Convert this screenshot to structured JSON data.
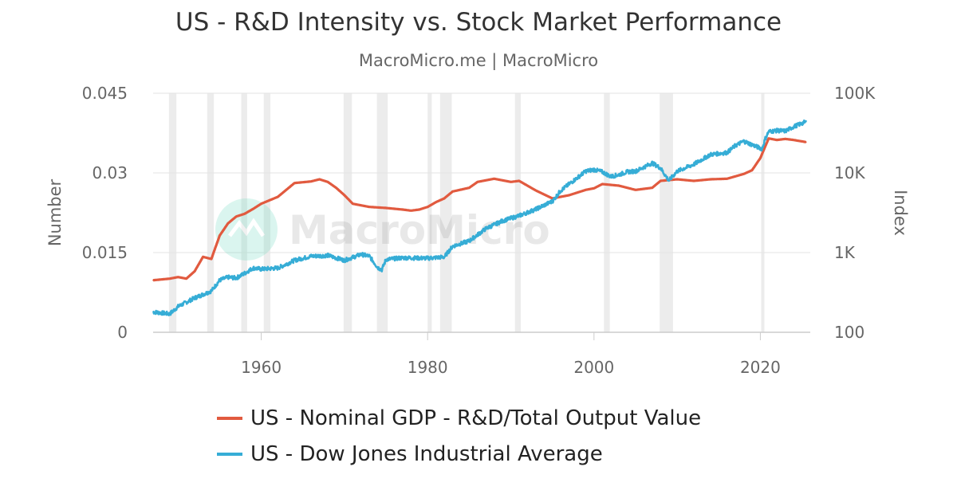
{
  "header": {
    "title": "US - R&D Intensity vs. Stock Market Performance",
    "subtitle": "MacroMicro.me | MacroMicro"
  },
  "watermark": {
    "text": "MacroMicro"
  },
  "chart_data": {
    "type": "line",
    "title": "US - R&D Intensity vs. Stock Market Performance",
    "subtitle": "MacroMicro.me | MacroMicro",
    "xlabel": "",
    "xlim": [
      1947,
      2026
    ],
    "x_ticks": [
      "1960",
      "1980",
      "2000",
      "2020"
    ],
    "x_tick_values": [
      1960,
      1980,
      2000,
      2020
    ],
    "y_left": {
      "label": "Number",
      "lim": [
        0,
        0.045
      ],
      "ticks": [
        "0",
        "0.015",
        "0.03",
        "0.045"
      ],
      "tick_values": [
        0,
        0.015,
        0.03,
        0.045
      ]
    },
    "y_right": {
      "label": "Index",
      "scale": "log",
      "lim": [
        100,
        100000
      ],
      "ticks": [
        "100",
        "1K",
        "10K",
        "100K"
      ],
      "tick_values": [
        100,
        1000,
        10000,
        100000
      ]
    },
    "recessions": [
      [
        1948.9,
        1949.8
      ],
      [
        1953.5,
        1954.3
      ],
      [
        1957.6,
        1958.3
      ],
      [
        1960.3,
        1961.1
      ],
      [
        1969.9,
        1970.9
      ],
      [
        1973.9,
        1975.2
      ],
      [
        1980.0,
        1980.5
      ],
      [
        1981.5,
        1982.9
      ],
      [
        1990.5,
        1991.2
      ],
      [
        2001.2,
        2001.9
      ],
      [
        2007.9,
        2009.5
      ],
      [
        2020.1,
        2020.4
      ]
    ],
    "series": [
      {
        "name": "US - Nominal GDP - R&D/Total Output Value",
        "axis": "left",
        "color": "#e15a3f",
        "x": [
          1947,
          1949,
          1950,
          1951,
          1952,
          1953,
          1954,
          1955,
          1956,
          1957,
          1958,
          1959,
          1960,
          1962,
          1964,
          1966,
          1967,
          1968,
          1969,
          1970,
          1971,
          1973,
          1975,
          1977,
          1978,
          1979,
          1980,
          1981,
          1982,
          1983,
          1985,
          1986,
          1988,
          1990,
          1991,
          1993,
          1995,
          1997,
          1999,
          2000,
          2001,
          2003,
          2005,
          2007,
          2008,
          2010,
          2012,
          2014,
          2016,
          2018,
          2019,
          2020,
          2021,
          2022,
          2023,
          2024,
          2025.5
        ],
        "values": [
          0.0098,
          0.0101,
          0.0104,
          0.0101,
          0.0115,
          0.0142,
          0.0138,
          0.0182,
          0.0205,
          0.0218,
          0.0223,
          0.0232,
          0.0242,
          0.0255,
          0.0281,
          0.0284,
          0.0288,
          0.0283,
          0.0272,
          0.0258,
          0.0242,
          0.0236,
          0.0234,
          0.0231,
          0.0229,
          0.0231,
          0.0236,
          0.0245,
          0.0252,
          0.0265,
          0.0272,
          0.0283,
          0.0289,
          0.0283,
          0.0285,
          0.0267,
          0.0252,
          0.0258,
          0.0268,
          0.0271,
          0.0279,
          0.0276,
          0.0268,
          0.0272,
          0.0285,
          0.0288,
          0.0285,
          0.0288,
          0.0289,
          0.0298,
          0.0305,
          0.0328,
          0.0365,
          0.0362,
          0.0364,
          0.0362,
          0.0358
        ]
      },
      {
        "name": "US - Dow Jones Industrial Average",
        "axis": "right",
        "color": "#36add6",
        "x": [
          1947,
          1949,
          1950,
          1952,
          1954,
          1955,
          1956,
          1957,
          1958,
          1959,
          1960,
          1962,
          1964,
          1966,
          1968,
          1970,
          1972,
          1973,
          1974,
          1974.5,
          1975,
          1977,
          1980,
          1982,
          1983,
          1985,
          1987,
          1989,
          1991,
          1993,
          1995,
          1996,
          1998,
          1999,
          2000,
          2001,
          2002,
          2003,
          2004,
          2005,
          2007,
          2008,
          2009,
          2010,
          2012,
          2014,
          2016,
          2017,
          2018,
          2020.2,
          2020.6,
          2021,
          2022,
          2023,
          2024,
          2025.5
        ],
        "values": [
          180,
          170,
          210,
          270,
          330,
          450,
          490,
          480,
          550,
          640,
          620,
          640,
          800,
          900,
          920,
          800,
          950,
          900,
          650,
          610,
          820,
          860,
          850,
          880,
          1200,
          1400,
          2000,
          2500,
          2900,
          3500,
          4400,
          6000,
          8700,
          10500,
          11000,
          10300,
          9000,
          9500,
          10300,
          10500,
          13300,
          11500,
          8000,
          10500,
          12800,
          17000,
          18000,
          22000,
          25000,
          20000,
          27000,
          33000,
          34000,
          33500,
          38000,
          44000
        ]
      }
    ]
  },
  "legend": {
    "entries": [
      {
        "label": "US - Nominal GDP - R&D/Total Output Value",
        "color": "#e15a3f"
      },
      {
        "label": "US - Dow Jones Industrial Average",
        "color": "#36add6"
      }
    ]
  }
}
